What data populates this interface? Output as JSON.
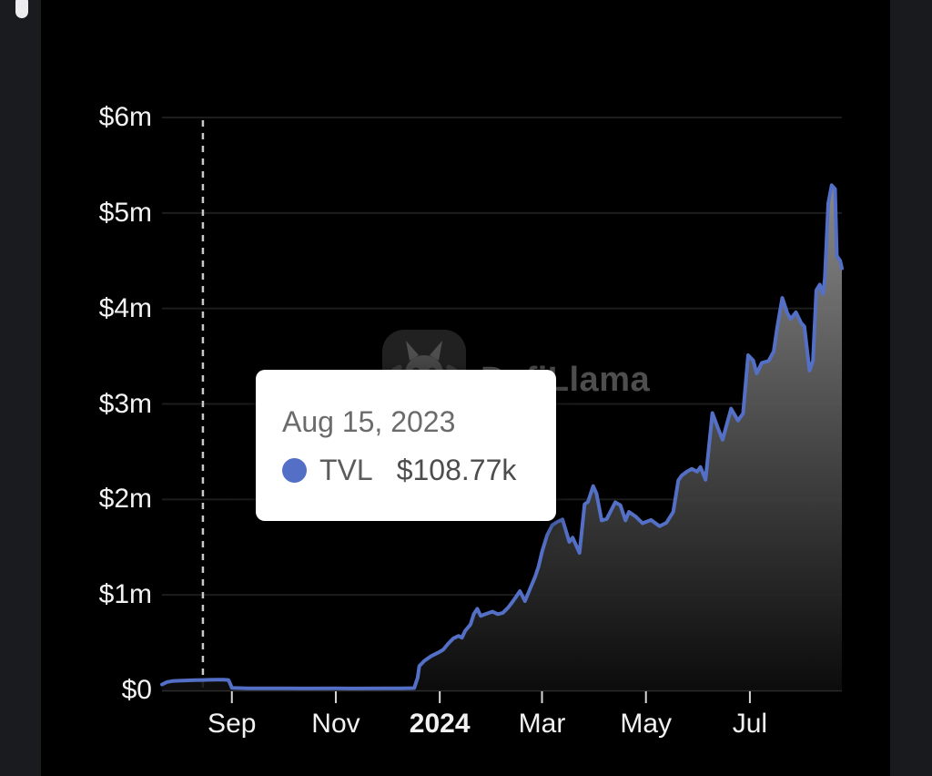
{
  "page": {
    "background": "#000000",
    "accent": "#5470c6"
  },
  "watermark": {
    "label": "DefiLlama",
    "icon": "llama-icon"
  },
  "tooltip": {
    "date": "Aug 15, 2023",
    "series_label": "TVL",
    "value": "$108.77k",
    "marker_color": "#5470c6"
  },
  "chart_data": {
    "type": "area",
    "title": "",
    "xlabel": "",
    "ylabel": "",
    "grid": true,
    "legend_position": "none",
    "ylim": [
      0,
      6000000
    ],
    "x_domain": [
      "2023-07-22",
      "2024-08-24"
    ],
    "y_ticks": [
      {
        "label": "$0",
        "value": 0
      },
      {
        "label": "$1m",
        "value": 1000000
      },
      {
        "label": "$2m",
        "value": 2000000
      },
      {
        "label": "$3m",
        "value": 3000000
      },
      {
        "label": "$4m",
        "value": 4000000
      },
      {
        "label": "$5m",
        "value": 5000000
      },
      {
        "label": "$6m",
        "value": 6000000
      }
    ],
    "x_ticks": [
      {
        "label": "Sep",
        "date": "2023-09-01",
        "bold": false
      },
      {
        "label": "Nov",
        "date": "2023-11-01",
        "bold": false
      },
      {
        "label": "2024",
        "date": "2024-01-01",
        "bold": true
      },
      {
        "label": "Mar",
        "date": "2024-03-01",
        "bold": false
      },
      {
        "label": "May",
        "date": "2024-05-01",
        "bold": false
      },
      {
        "label": "Jul",
        "date": "2024-07-01",
        "bold": false
      }
    ],
    "hover": {
      "date": "2023-08-15",
      "value": 108770
    },
    "series": [
      {
        "name": "TVL",
        "color": "#5470c6",
        "area_gradient_top": "#909090",
        "area_gradient_bottom": "#0d0d0d",
        "points": [
          [
            "2023-07-22",
            62000
          ],
          [
            "2023-07-25",
            88000
          ],
          [
            "2023-07-28",
            97000
          ],
          [
            "2023-08-01",
            101000
          ],
          [
            "2023-08-05",
            104000
          ],
          [
            "2023-08-10",
            107000
          ],
          [
            "2023-08-15",
            108770
          ],
          [
            "2023-08-19",
            111000
          ],
          [
            "2023-08-23",
            113000
          ],
          [
            "2023-08-27",
            112000
          ],
          [
            "2023-08-30",
            109000
          ],
          [
            "2023-08-31",
            70000
          ],
          [
            "2023-09-01",
            26000
          ],
          [
            "2023-09-10",
            22000
          ],
          [
            "2023-09-20",
            21000
          ],
          [
            "2023-10-01",
            21000
          ],
          [
            "2023-10-15",
            20000
          ],
          [
            "2023-11-01",
            21000
          ],
          [
            "2023-11-15",
            20000
          ],
          [
            "2023-12-01",
            21000
          ],
          [
            "2023-12-10",
            22000
          ],
          [
            "2023-12-17",
            24000
          ],
          [
            "2023-12-19",
            130000
          ],
          [
            "2023-12-20",
            255000
          ],
          [
            "2023-12-23",
            310000
          ],
          [
            "2023-12-27",
            360000
          ],
          [
            "2023-12-31",
            395000
          ],
          [
            "2024-01-03",
            425000
          ],
          [
            "2024-01-06",
            490000
          ],
          [
            "2024-01-09",
            545000
          ],
          [
            "2024-01-12",
            570000
          ],
          [
            "2024-01-14",
            552000
          ],
          [
            "2024-01-16",
            625000
          ],
          [
            "2024-01-19",
            690000
          ],
          [
            "2024-01-21",
            800000
          ],
          [
            "2024-01-23",
            855000
          ],
          [
            "2024-01-25",
            780000
          ],
          [
            "2024-01-28",
            800000
          ],
          [
            "2024-02-01",
            825000
          ],
          [
            "2024-02-04",
            798000
          ],
          [
            "2024-02-07",
            812000
          ],
          [
            "2024-02-10",
            865000
          ],
          [
            "2024-02-13",
            935000
          ],
          [
            "2024-02-15",
            985000
          ],
          [
            "2024-02-17",
            1040000
          ],
          [
            "2024-02-20",
            935000
          ],
          [
            "2024-02-23",
            1065000
          ],
          [
            "2024-02-26",
            1190000
          ],
          [
            "2024-02-28",
            1300000
          ],
          [
            "2024-03-01",
            1450000
          ],
          [
            "2024-03-04",
            1625000
          ],
          [
            "2024-03-07",
            1730000
          ],
          [
            "2024-03-10",
            1765000
          ],
          [
            "2024-03-13",
            1790000
          ],
          [
            "2024-03-17",
            1555000
          ],
          [
            "2024-03-19",
            1600000
          ],
          [
            "2024-03-23",
            1440000
          ],
          [
            "2024-03-26",
            1950000
          ],
          [
            "2024-03-28",
            1975000
          ],
          [
            "2024-03-31",
            2140000
          ],
          [
            "2024-04-02",
            2060000
          ],
          [
            "2024-04-05",
            1780000
          ],
          [
            "2024-04-08",
            1795000
          ],
          [
            "2024-04-13",
            1970000
          ],
          [
            "2024-04-16",
            1940000
          ],
          [
            "2024-04-19",
            1780000
          ],
          [
            "2024-04-21",
            1870000
          ],
          [
            "2024-04-25",
            1820000
          ],
          [
            "2024-04-29",
            1750000
          ],
          [
            "2024-05-04",
            1785000
          ],
          [
            "2024-05-09",
            1720000
          ],
          [
            "2024-05-13",
            1755000
          ],
          [
            "2024-05-17",
            1870000
          ],
          [
            "2024-05-20",
            2200000
          ],
          [
            "2024-05-22",
            2250000
          ],
          [
            "2024-05-25",
            2290000
          ],
          [
            "2024-05-28",
            2320000
          ],
          [
            "2024-05-31",
            2290000
          ],
          [
            "2024-06-02",
            2340000
          ],
          [
            "2024-06-05",
            2205000
          ],
          [
            "2024-06-09",
            2905000
          ],
          [
            "2024-06-12",
            2760000
          ],
          [
            "2024-06-15",
            2625000
          ],
          [
            "2024-06-20",
            2950000
          ],
          [
            "2024-06-24",
            2825000
          ],
          [
            "2024-06-27",
            2900000
          ],
          [
            "2024-06-30",
            3510000
          ],
          [
            "2024-07-03",
            3455000
          ],
          [
            "2024-07-05",
            3320000
          ],
          [
            "2024-07-08",
            3430000
          ],
          [
            "2024-07-12",
            3450000
          ],
          [
            "2024-07-15",
            3550000
          ],
          [
            "2024-07-17",
            3800000
          ],
          [
            "2024-07-20",
            4110000
          ],
          [
            "2024-07-23",
            3950000
          ],
          [
            "2024-07-25",
            3890000
          ],
          [
            "2024-07-28",
            3960000
          ],
          [
            "2024-07-31",
            3850000
          ],
          [
            "2024-08-02",
            3810000
          ],
          [
            "2024-08-05",
            3350000
          ],
          [
            "2024-08-07",
            3450000
          ],
          [
            "2024-08-09",
            4190000
          ],
          [
            "2024-08-11",
            4250000
          ],
          [
            "2024-08-13",
            4150000
          ],
          [
            "2024-08-14",
            4320000
          ],
          [
            "2024-08-16",
            5100000
          ],
          [
            "2024-08-18",
            5290000
          ],
          [
            "2024-08-20",
            5250000
          ],
          [
            "2024-08-21",
            4550000
          ],
          [
            "2024-08-23",
            4500000
          ],
          [
            "2024-08-24",
            4420000
          ]
        ]
      }
    ]
  }
}
